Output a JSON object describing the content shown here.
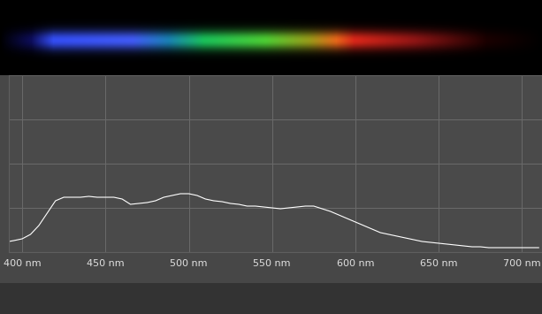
{
  "chart_data": {
    "type": "line",
    "x": [
      392,
      395,
      400,
      405,
      410,
      415,
      420,
      425,
      430,
      435,
      440,
      445,
      450,
      455,
      460,
      465,
      470,
      475,
      480,
      485,
      490,
      495,
      500,
      505,
      510,
      515,
      520,
      525,
      530,
      535,
      540,
      545,
      550,
      555,
      560,
      565,
      570,
      575,
      580,
      585,
      590,
      595,
      600,
      605,
      610,
      615,
      620,
      625,
      630,
      635,
      640,
      645,
      650,
      655,
      660,
      665,
      670,
      675,
      680,
      685,
      690,
      695,
      700,
      705,
      710
    ],
    "values": [
      6,
      6.5,
      7.5,
      10,
      15,
      22,
      29,
      31,
      31,
      31,
      31.5,
      31,
      31,
      31,
      30,
      27,
      27.5,
      28,
      29,
      31,
      32,
      33,
      33,
      32,
      30,
      29,
      28.5,
      27.5,
      27,
      26,
      26,
      25.5,
      25,
      24.5,
      25,
      25.5,
      26,
      26,
      24.5,
      23,
      21,
      19,
      17,
      15,
      13,
      11,
      10,
      9,
      8,
      7,
      6,
      5.5,
      5,
      4.5,
      4,
      3.5,
      3,
      3,
      2.5,
      2.5,
      2.5,
      2.5,
      2.5,
      2.5,
      2.5
    ],
    "color": "#ffffff",
    "xlim": [
      392,
      712
    ],
    "xticks": [
      {
        "value": 400,
        "label": "400 nm"
      },
      {
        "value": 450,
        "label": "450 nm"
      },
      {
        "value": 500,
        "label": "500 nm"
      },
      {
        "value": 550,
        "label": "550 nm"
      },
      {
        "value": 600,
        "label": "600 nm"
      },
      {
        "value": 650,
        "label": "650 nm"
      },
      {
        "value": 700,
        "label": "700 nm"
      }
    ],
    "ylim": [
      0,
      100
    ],
    "yticks": [
      0,
      25,
      50,
      75,
      100
    ],
    "grid": true,
    "tick_labels": "x"
  }
}
